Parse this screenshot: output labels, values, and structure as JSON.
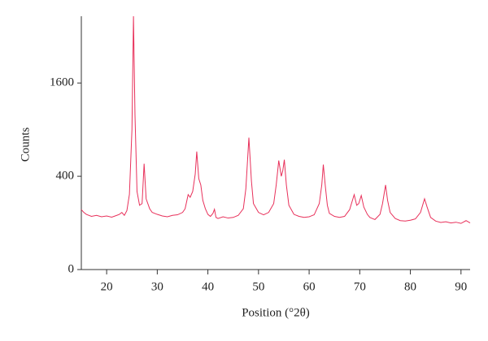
{
  "chart_data": {
    "type": "line",
    "scale": "sqrt",
    "color": "#e8305a",
    "xlabel": "Position (°2θ)",
    "ylabel": "Counts",
    "xlim": [
      15,
      91.8
    ],
    "ylim": [
      0,
      2950
    ],
    "xticks": [
      20,
      30,
      40,
      50,
      60,
      70,
      80,
      90
    ],
    "yticks": [
      0,
      400,
      1600
    ],
    "x": [
      15,
      15.5,
      16,
      17,
      18,
      19,
      20,
      21,
      22,
      22.5,
      23,
      23.5,
      24,
      24.5,
      25,
      25.3,
      25.6,
      26,
      26.5,
      27,
      27.4,
      27.8,
      28.5,
      29,
      30,
      31,
      32,
      33,
      34,
      35,
      35.5,
      36.1,
      36.5,
      37,
      37.5,
      37.8,
      38.2,
      38.6,
      39,
      39.5,
      40,
      40.5,
      41,
      41.3,
      41.6,
      42,
      43,
      44,
      45,
      46,
      47,
      47.5,
      48.1,
      48.6,
      49,
      50,
      51,
      52,
      53,
      53.5,
      54,
      54.5,
      54.8,
      55.1,
      55.5,
      56,
      57,
      58,
      59,
      60,
      61,
      62,
      62.5,
      62.8,
      63.2,
      63.6,
      64,
      65,
      66,
      67,
      68,
      68.9,
      69.4,
      69.8,
      70.3,
      70.8,
      71.5,
      72,
      73,
      74,
      74.5,
      75.1,
      75.5,
      76,
      77,
      78,
      79,
      80,
      81,
      82,
      82.8,
      83.3,
      84,
      85,
      86,
      87,
      88,
      89,
      90,
      91,
      91.8
    ],
    "values": [
      165,
      150,
      140,
      130,
      135,
      128,
      132,
      126,
      135,
      140,
      150,
      135,
      160,
      260,
      900,
      2950,
      1100,
      280,
      190,
      200,
      515,
      230,
      170,
      150,
      140,
      132,
      128,
      135,
      138,
      150,
      170,
      258,
      240,
      280,
      420,
      640,
      380,
      329,
      220,
      170,
      140,
      130,
      145,
      167,
      125,
      120,
      128,
      122,
      125,
      135,
      170,
      300,
      800,
      360,
      200,
      150,
      138,
      150,
      200,
      330,
      547,
      400,
      450,
      555,
      330,
      190,
      140,
      130,
      125,
      128,
      138,
      200,
      330,
      507,
      320,
      190,
      145,
      130,
      125,
      130,
      165,
      258,
      190,
      200,
      252,
      180,
      140,
      125,
      115,
      140,
      200,
      329,
      220,
      150,
      120,
      110,
      108,
      112,
      118,
      150,
      230,
      180,
      125,
      108,
      102,
      105,
      100,
      103,
      98,
      110,
      100
    ]
  }
}
